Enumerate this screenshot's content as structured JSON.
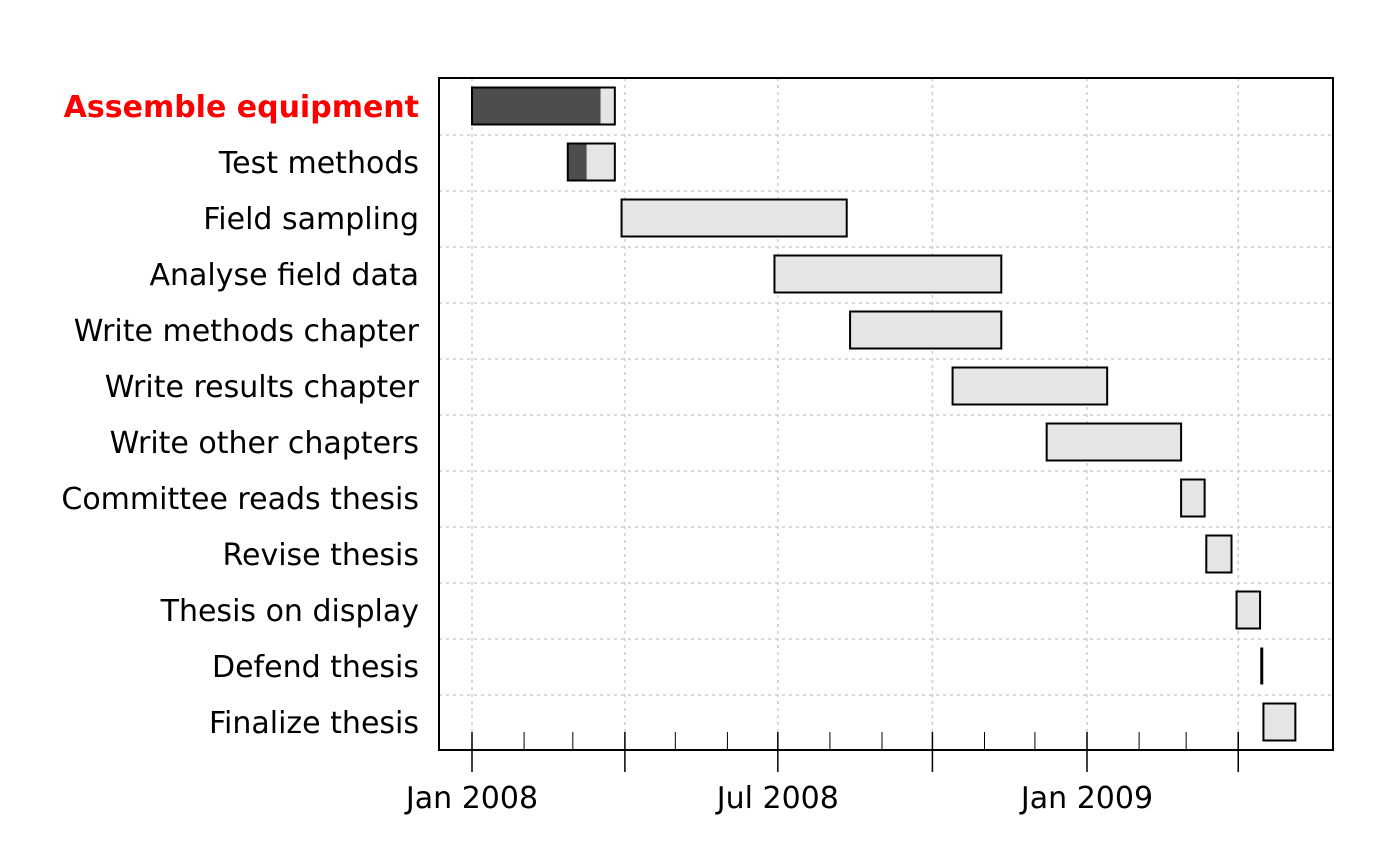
{
  "chart_data": {
    "type": "gantt",
    "title": "",
    "xlabel": "",
    "ylabel": "",
    "x_range": [
      "2007-12-16",
      "2009-04-15"
    ],
    "x_tick_labels": [
      {
        "date": "2008-01-01",
        "label": "Jan 2008"
      },
      {
        "date": "2008-07-01",
        "label": "Jul 2008"
      },
      {
        "date": "2009-01-01",
        "label": "Jan 2009"
      }
    ],
    "x_major_ticks": [
      "2008-01-01",
      "2008-04-01",
      "2008-07-01",
      "2008-10-01",
      "2009-01-01",
      "2009-04-01"
    ],
    "x_minor_ticks": [
      "2008-02-01",
      "2008-03-01",
      "2008-05-01",
      "2008-06-01",
      "2008-08-01",
      "2008-09-01",
      "2008-11-01",
      "2008-12-01",
      "2009-02-01",
      "2009-03-01"
    ],
    "grid": true,
    "highlight_color": "#ff0000",
    "done_color": "#4d4d4d",
    "todo_color": "#e5e5e5",
    "tasks": [
      {
        "label": "Assemble equipment",
        "start": "2008-01-01",
        "end": "2008-03-26",
        "done": 0.9,
        "highlight": true
      },
      {
        "label": "Test methods",
        "start": "2008-02-27",
        "end": "2008-03-26",
        "done": 0.4
      },
      {
        "label": "Field sampling",
        "start": "2008-03-30",
        "end": "2008-08-11",
        "done": 0
      },
      {
        "label": "Analyse field data",
        "start": "2008-06-29",
        "end": "2008-11-11",
        "done": 0
      },
      {
        "label": "Write methods chapter",
        "start": "2008-08-13",
        "end": "2008-11-11",
        "done": 0
      },
      {
        "label": "Write results chapter",
        "start": "2008-10-13",
        "end": "2009-01-13",
        "done": 0
      },
      {
        "label": "Write other chapters",
        "start": "2008-12-08",
        "end": "2009-02-26",
        "done": 0
      },
      {
        "label": "Committee reads thesis",
        "start": "2009-02-26",
        "end": "2009-03-12",
        "done": 0
      },
      {
        "label": "Revise thesis",
        "start": "2009-03-13",
        "end": "2009-03-28",
        "done": 0
      },
      {
        "label": "Thesis on display",
        "start": "2009-03-31",
        "end": "2009-04-14",
        "done": 0
      },
      {
        "label": "Defend thesis",
        "start": "2009-04-15",
        "end": "2009-04-15",
        "done": 0
      },
      {
        "label": "Finalize thesis",
        "start": "2009-04-16",
        "end": "2009-05-05",
        "done": 0
      }
    ]
  }
}
